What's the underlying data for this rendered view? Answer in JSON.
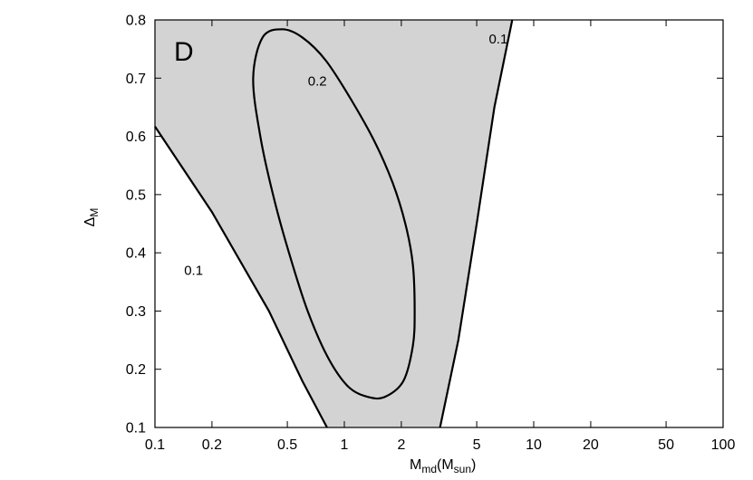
{
  "chart_data": {
    "type": "contour",
    "panel_label": "D",
    "xlabel": {
      "main": "M",
      "sub": "md",
      "paren_open": "(M",
      "paren_sub": "sun",
      "paren_close": ")"
    },
    "ylabel": {
      "main": "Δ",
      "sub": "M"
    },
    "xscale": "log",
    "xlim": [
      0.1,
      100
    ],
    "ylim": [
      0.1,
      0.8
    ],
    "x_ticks": [
      {
        "value": 0.1,
        "label": "0.1"
      },
      {
        "value": 0.2,
        "label": "0.2"
      },
      {
        "value": 0.5,
        "label": "0.5"
      },
      {
        "value": 1,
        "label": "1"
      },
      {
        "value": 2,
        "label": "2"
      },
      {
        "value": 5,
        "label": "5"
      },
      {
        "value": 10,
        "label": "10"
      },
      {
        "value": 20,
        "label": "20"
      },
      {
        "value": 50,
        "label": "50"
      },
      {
        "value": 100,
        "label": "100"
      }
    ],
    "y_ticks": [
      {
        "value": 0.1,
        "label": "0.1"
      },
      {
        "value": 0.2,
        "label": "0.2"
      },
      {
        "value": 0.3,
        "label": "0.3"
      },
      {
        "value": 0.4,
        "label": "0.4"
      },
      {
        "value": 0.5,
        "label": "0.5"
      },
      {
        "value": 0.6,
        "label": "0.6"
      },
      {
        "value": 0.7,
        "label": "0.7"
      },
      {
        "value": 0.8,
        "label": "0.8"
      }
    ],
    "grid": false,
    "fill_color": "#d3d3d3",
    "line_color": "#000000",
    "region_shaded": {
      "level": 0.1,
      "left_boundary": [
        [
          0.1,
          0.617
        ],
        [
          0.2,
          0.47
        ],
        [
          0.4,
          0.3
        ],
        [
          0.6,
          0.18
        ],
        [
          0.81,
          0.1
        ]
      ],
      "right_boundary": [
        [
          3.2,
          0.1
        ],
        [
          4.0,
          0.25
        ],
        [
          5.0,
          0.45
        ],
        [
          6.2,
          0.65
        ],
        [
          7.7,
          0.8
        ]
      ]
    },
    "contour_02": {
      "level": 0.2,
      "points": [
        [
          0.47,
          0.784
        ],
        [
          0.37,
          0.77
        ],
        [
          0.33,
          0.7
        ],
        [
          0.36,
          0.6
        ],
        [
          0.42,
          0.5
        ],
        [
          0.51,
          0.4
        ],
        [
          0.64,
          0.3
        ],
        [
          0.82,
          0.22
        ],
        [
          1.05,
          0.17
        ],
        [
          1.35,
          0.152
        ],
        [
          1.65,
          0.153
        ],
        [
          2.05,
          0.18
        ],
        [
          2.3,
          0.24
        ],
        [
          2.35,
          0.3
        ],
        [
          2.3,
          0.38
        ],
        [
          2.1,
          0.45
        ],
        [
          1.8,
          0.52
        ],
        [
          1.45,
          0.59
        ],
        [
          1.1,
          0.66
        ],
        [
          0.8,
          0.73
        ],
        [
          0.6,
          0.77
        ],
        [
          0.47,
          0.784
        ]
      ]
    },
    "annotations": [
      {
        "text": "0.1",
        "x": 0.16,
        "y": 0.37
      },
      {
        "text": "0.2",
        "x": 0.72,
        "y": 0.695
      },
      {
        "text": "0.1",
        "x": 6.5,
        "y": 0.767
      }
    ]
  }
}
